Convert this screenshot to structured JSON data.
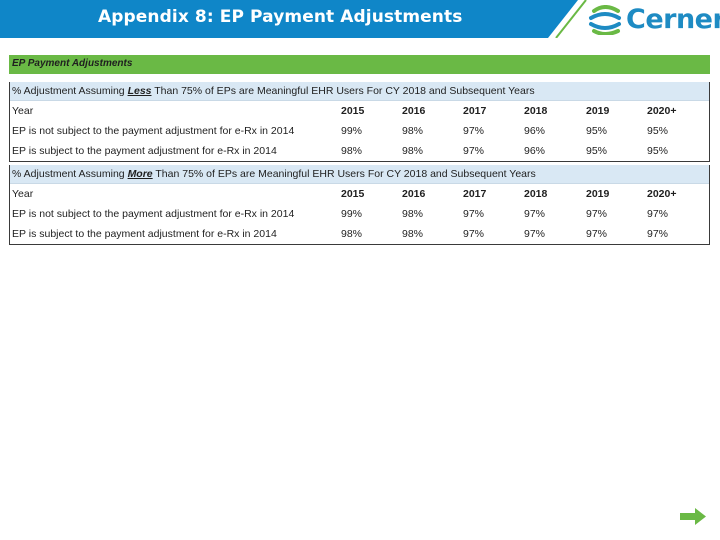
{
  "slide": {
    "title": "Appendix 8: EP Payment Adjustments",
    "logo_text": "Cerner",
    "colors": {
      "header_blue": "#0f86c8",
      "green": "#6ab945",
      "row_blue": "#d9e8f4"
    }
  },
  "table": {
    "caption": "EP Payment Adjustments",
    "sections": [
      {
        "head_pre": "% Adjustment Assuming ",
        "head_emph": "Less",
        "head_post": " Than 75% of EPs are Meaningful EHR Users For CY 2018 and Subsequent Years",
        "year_label": "Year",
        "years": [
          "2015",
          "2016",
          "2017",
          "2018",
          "2019",
          "2020+"
        ],
        "rows": [
          {
            "label": "EP is not subject to the payment adjustment for e-Rx in 2014",
            "values": [
              "99%",
              "98%",
              "97%",
              "96%",
              "95%",
              "95%"
            ]
          },
          {
            "label": "EP is subject to the payment adjustment for e-Rx in 2014",
            "values": [
              "98%",
              "98%",
              "97%",
              "96%",
              "95%",
              "95%"
            ]
          }
        ]
      },
      {
        "head_pre": "% Adjustment Assuming ",
        "head_emph": "More",
        "head_post": " Than 75% of EPs are Meaningful EHR Users For CY 2018 and Subsequent Years",
        "year_label": "Year",
        "years": [
          "2015",
          "2016",
          "2017",
          "2018",
          "2019",
          "2020+"
        ],
        "rows": [
          {
            "label": "EP is not subject to the payment adjustment for e-Rx in 2014",
            "values": [
              "99%",
              "98%",
              "97%",
              "97%",
              "97%",
              "97%"
            ]
          },
          {
            "label": "EP is subject to the payment adjustment for e-Rx in 2014",
            "values": [
              "98%",
              "98%",
              "97%",
              "97%",
              "97%",
              "97%"
            ]
          }
        ]
      }
    ]
  },
  "icons": {
    "next": "next-arrow-icon",
    "logo": "cerner-logo-icon"
  }
}
